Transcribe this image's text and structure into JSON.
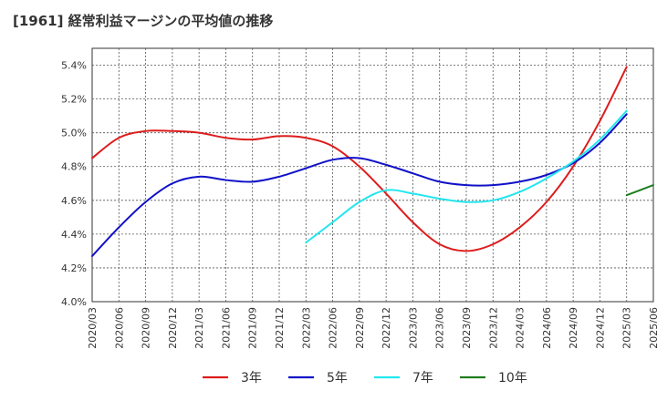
{
  "chart_data": {
    "type": "line",
    "title": "[1961]  経常利益マージンの平均値の推移",
    "xlabel": "",
    "ylabel": "",
    "x": [
      "2020/03",
      "2020/06",
      "2020/09",
      "2020/12",
      "2021/03",
      "2021/06",
      "2021/09",
      "2021/12",
      "2022/03",
      "2022/06",
      "2022/09",
      "2022/12",
      "2023/03",
      "2023/06",
      "2023/09",
      "2023/12",
      "2024/03",
      "2024/06",
      "2024/09",
      "2024/12",
      "2025/03",
      "2025/06"
    ],
    "ylim": [
      4.0,
      5.5
    ],
    "yticks": [
      4.0,
      4.2,
      4.4,
      4.6,
      4.8,
      5.0,
      5.2,
      5.4
    ],
    "ytick_labels": [
      "4.0%",
      "4.2%",
      "4.4%",
      "4.6%",
      "4.8%",
      "5.0%",
      "5.2%",
      "5.4%"
    ],
    "grid": true,
    "legend_position": "bottom",
    "series": [
      {
        "name": "3年",
        "color": "#dd1c1c",
        "values": [
          4.85,
          4.97,
          5.01,
          5.01,
          5.0,
          4.97,
          4.96,
          4.98,
          4.97,
          4.92,
          4.8,
          4.64,
          4.47,
          4.34,
          4.3,
          4.34,
          4.44,
          4.59,
          4.8,
          5.07,
          5.39,
          null
        ]
      },
      {
        "name": "5年",
        "color": "#1010c8",
        "values": [
          4.27,
          4.44,
          4.59,
          4.7,
          4.74,
          4.72,
          4.71,
          4.74,
          4.79,
          4.84,
          4.85,
          4.81,
          4.76,
          4.71,
          4.69,
          4.69,
          4.71,
          4.75,
          4.82,
          4.94,
          5.11,
          null
        ]
      },
      {
        "name": "7年",
        "color": "#22e6ee",
        "values": [
          null,
          null,
          null,
          null,
          null,
          null,
          null,
          null,
          4.35,
          4.47,
          4.59,
          4.66,
          4.64,
          4.61,
          4.59,
          4.6,
          4.65,
          4.73,
          4.83,
          4.96,
          5.13,
          null
        ]
      },
      {
        "name": "10年",
        "color": "#1f7d1f",
        "values": [
          null,
          null,
          null,
          null,
          null,
          null,
          null,
          null,
          null,
          null,
          null,
          null,
          null,
          null,
          null,
          null,
          null,
          null,
          null,
          null,
          4.63,
          4.69
        ]
      }
    ]
  }
}
